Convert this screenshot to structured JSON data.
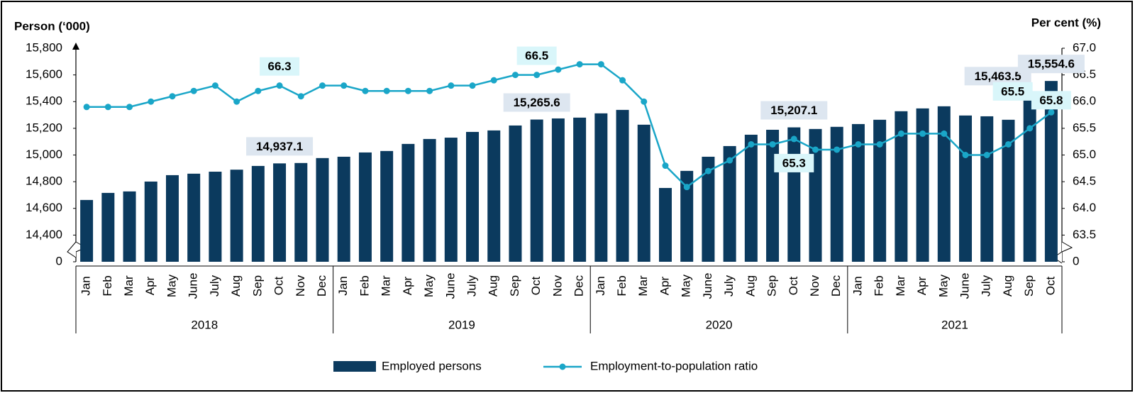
{
  "chart_data": {
    "type": "bar-line",
    "y_label": "Person (‘000)",
    "y2_label": "Per cent (%)",
    "categories": [
      "Jan",
      "Feb",
      "Mar",
      "Apr",
      "May",
      "June",
      "July",
      "Aug",
      "Sep",
      "Oct",
      "Nov",
      "Dec",
      "Jan",
      "Feb",
      "Mar",
      "Apr",
      "May",
      "June",
      "July",
      "Aug",
      "Sep",
      "Oct",
      "Nov",
      "Dec",
      "Jan",
      "Feb",
      "Mar",
      "Apr",
      "May",
      "June",
      "July",
      "Aug",
      "Sep",
      "Oct",
      "Nov",
      "Dec",
      "Jan",
      "Feb",
      "Mar",
      "Apr",
      "May",
      "June",
      "July",
      "Aug",
      "Sep",
      "Oct"
    ],
    "groups": [
      {
        "label": "2018",
        "span": 12
      },
      {
        "label": "2019",
        "span": 12
      },
      {
        "label": "2020",
        "span": 12
      },
      {
        "label": "2021",
        "span": 10
      }
    ],
    "series": [
      {
        "name": "Employed persons",
        "type": "bar",
        "color": "#0b3a5e",
        "values": [
          14663,
          14716,
          14727,
          14801,
          14849,
          14860,
          14875,
          14890,
          14918,
          14937.1,
          14940,
          14977,
          14987,
          15019,
          15030,
          15083,
          15120,
          15130,
          15173,
          15184,
          15221,
          15265.6,
          15274,
          15280,
          15312,
          15338,
          15227,
          14753,
          14881,
          14987,
          15067,
          15152,
          15189,
          15207.1,
          15195,
          15211,
          15232,
          15264,
          15328,
          15349,
          15365,
          15296,
          15290,
          15264,
          15463.5,
          15554.6
        ],
        "value_labels": [
          null,
          null,
          null,
          null,
          null,
          null,
          null,
          null,
          null,
          "14,937.1",
          null,
          null,
          null,
          null,
          null,
          null,
          null,
          null,
          null,
          null,
          null,
          "15,265.6",
          null,
          null,
          null,
          null,
          null,
          null,
          null,
          null,
          null,
          null,
          null,
          "15,207.1",
          null,
          null,
          null,
          null,
          null,
          null,
          null,
          null,
          null,
          null,
          "15,463.5",
          "15,554.6"
        ]
      },
      {
        "name": "Employment-to-population ratio",
        "type": "line",
        "axis": "y2",
        "color": "#1aa6c8",
        "values": [
          65.9,
          65.9,
          65.9,
          66.0,
          66.1,
          66.2,
          66.3,
          66.0,
          66.2,
          66.3,
          66.1,
          66.3,
          66.3,
          66.2,
          66.2,
          66.2,
          66.2,
          66.3,
          66.3,
          66.4,
          66.5,
          66.5,
          66.6,
          66.7,
          66.7,
          66.4,
          66.0,
          64.8,
          64.4,
          64.7,
          64.9,
          65.2,
          65.2,
          65.3,
          65.1,
          65.1,
          65.2,
          65.2,
          65.4,
          65.4,
          65.4,
          65.0,
          65.0,
          65.2,
          65.5,
          65.8
        ],
        "value_labels": [
          null,
          null,
          null,
          null,
          null,
          null,
          null,
          null,
          null,
          "66.3",
          null,
          null,
          null,
          null,
          null,
          null,
          null,
          null,
          null,
          null,
          null,
          "66.5",
          null,
          null,
          null,
          null,
          null,
          null,
          null,
          null,
          null,
          null,
          null,
          "65.3",
          null,
          null,
          null,
          null,
          null,
          null,
          null,
          null,
          null,
          null,
          "65.5",
          "65.8"
        ]
      }
    ],
    "ylim": [
      0,
      15800
    ],
    "ybreak": [
      0,
      14200
    ],
    "yticks": [
      0,
      {
        "value": 14400,
        "label": "14,400"
      },
      {
        "value": 14600,
        "label": "14,600"
      },
      {
        "value": 14800,
        "label": "14,800"
      },
      {
        "value": 15000,
        "label": "15,000"
      },
      {
        "value": 15200,
        "label": "15,200"
      },
      {
        "value": 15400,
        "label": "15,400"
      },
      {
        "value": 15600,
        "label": "15,600"
      },
      {
        "value": 15800,
        "label": "15,800"
      }
    ],
    "y2lim": [
      0,
      67
    ],
    "y2break": [
      0,
      63
    ],
    "y2ticks": [
      0,
      63.5,
      64,
      {
        "value": 64,
        "label": "64.0"
      },
      64.5,
      {
        "value": 65,
        "label": "65.0"
      },
      65.5,
      {
        "value": 66,
        "label": "66.0"
      },
      66.5,
      {
        "value": 67,
        "label": "67.0"
      }
    ],
    "legend": "bottom"
  }
}
